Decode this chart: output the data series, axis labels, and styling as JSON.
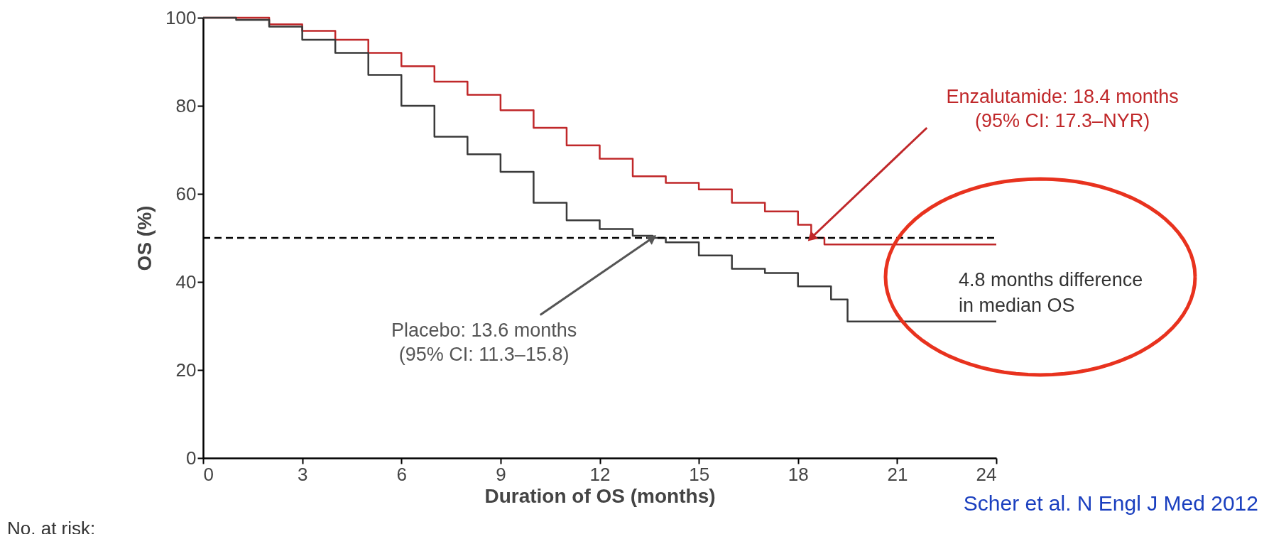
{
  "chart_data": {
    "type": "step",
    "xlabel": "Duration of OS (months)",
    "ylabel": "OS (%)",
    "series": [
      {
        "color": "#c0282a",
        "x": [
          0,
          1,
          2,
          3,
          4,
          5,
          6,
          7,
          8,
          9,
          10,
          11,
          12,
          13,
          14,
          15,
          16,
          17,
          18,
          18.4,
          18.8,
          24
        ],
        "values": [
          100,
          100,
          98.5,
          97,
          95,
          92,
          89,
          85.5,
          82.5,
          79,
          75,
          71,
          68,
          64,
          62.5,
          61,
          58,
          56,
          53,
          50,
          48.5,
          48.5
        ]
      },
      {
        "color": "#3a3a3a",
        "x": [
          0,
          1,
          2,
          3,
          4,
          5,
          6,
          7,
          8,
          9,
          10,
          11,
          12,
          13,
          13.6,
          14,
          15,
          16,
          17,
          18,
          19,
          19.5,
          24
        ],
        "values": [
          100,
          99.5,
          98,
          95,
          92,
          87,
          80,
          73,
          69,
          65,
          58,
          54,
          52,
          50.5,
          50,
          49,
          46,
          43,
          42,
          39,
          36,
          31,
          31
        ]
      }
    ],
    "xlim": [
      0,
      24
    ],
    "xticks": [
      0,
      3,
      6,
      9,
      12,
      15,
      18,
      21,
      24
    ],
    "ylim": [
      0,
      100
    ],
    "yticks": [
      0,
      20,
      40,
      60,
      80,
      100
    ],
    "grid": false,
    "marker": "none",
    "line_style": "solid",
    "ref_lines": [
      {
        "axis": "y",
        "value": 50,
        "color": "#000000",
        "line_style": "dashed"
      }
    ],
    "annotations": [
      {
        "text": "Enzalutamide: 18.4 months\n(95% CI: 17.3–NYR)",
        "x": 18.4,
        "y": 50
      },
      {
        "text": "Placebo: 13.6 months\n(95% CI: 11.3–15.8)",
        "x": 13.6,
        "y": 50
      },
      "4.8 months difference\nin median OS",
      "Scher et al. N Engl J Med 2012",
      "No. at risk:"
    ]
  }
}
